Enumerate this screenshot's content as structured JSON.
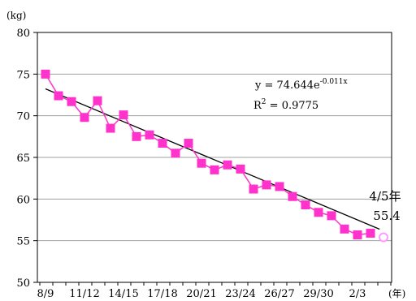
{
  "chart_data": {
    "type": "line",
    "ylabel": "(kg)",
    "xlabel": "(年)",
    "ylim": [
      50,
      80
    ],
    "yticks": [
      50,
      55,
      60,
      65,
      70,
      75,
      80
    ],
    "xtick_labels": [
      "8/9",
      "11/12",
      "14/15",
      "17/18",
      "20/21",
      "23/24",
      "26/27",
      "29/30",
      "2/3"
    ],
    "grid": true,
    "legend": "none",
    "series": [
      {
        "color": "#ff33cc",
        "marker": "square",
        "values": [
          75.0,
          72.4,
          71.7,
          69.8,
          71.8,
          68.5,
          70.1,
          67.5,
          67.7,
          66.7,
          65.5,
          66.7,
          64.3,
          63.5,
          64.1,
          63.6,
          61.2,
          61.7,
          61.5,
          60.3,
          59.3,
          58.4,
          58.0,
          56.4,
          55.7,
          55.9
        ]
      },
      {
        "color": "#ff99ff",
        "marker": "hollow-circle",
        "latest_label": "4/5年",
        "latest_value": 55.4
      }
    ],
    "trendline": {
      "color": "#000000",
      "equation": "y = 74.644e",
      "exponent": "-0.011x",
      "r2_prefix": "R",
      "r2_sup": "2",
      "r2_value": " = 0.9775"
    }
  }
}
